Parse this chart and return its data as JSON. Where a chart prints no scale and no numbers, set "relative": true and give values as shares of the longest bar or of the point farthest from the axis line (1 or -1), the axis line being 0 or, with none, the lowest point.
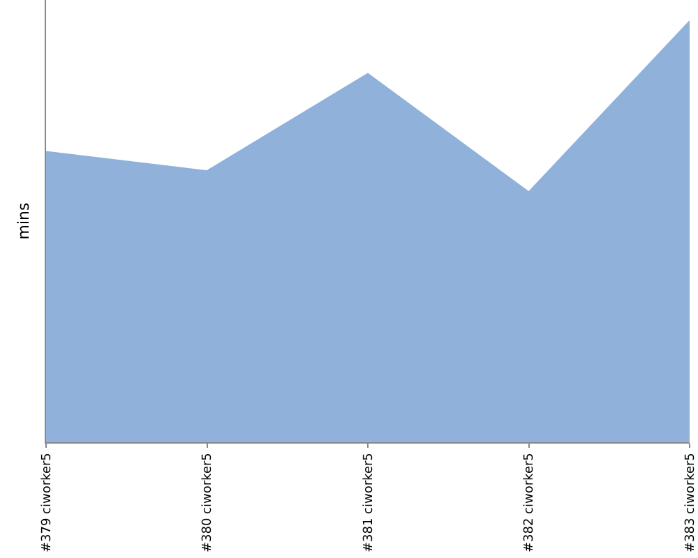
{
  "chart_data": {
    "type": "area",
    "ylabel": "mins",
    "relative": true,
    "categories": [
      "#379 ciworker5",
      "#380 ciworker5",
      "#381 ciworker5",
      "#382 ciworker5",
      "#383 ciworker5"
    ],
    "series": [
      {
        "color": "#8fb1da",
        "values": [
          0.69,
          0.644,
          0.875,
          0.594,
          1
        ]
      }
    ],
    "grid": false
  }
}
